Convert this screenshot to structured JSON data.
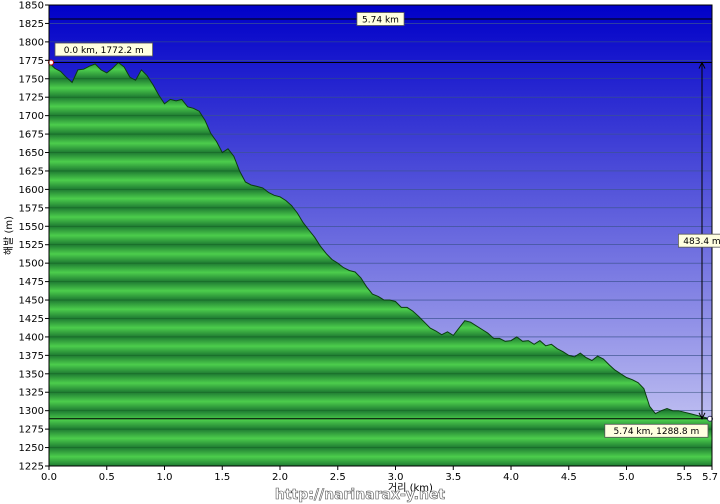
{
  "chart_data": {
    "type": "area",
    "title": "",
    "xlabel": "거리 (km)",
    "ylabel": "해발 (m)",
    "xlim": [
      0,
      5.74
    ],
    "ylim": [
      1225,
      1850
    ],
    "x_ticks": [
      "0.0",
      "0.5",
      "1.0",
      "1.5",
      "2.0",
      "2.5",
      "3.0",
      "3.5",
      "4.0",
      "4.5",
      "5.0",
      "5.5",
      "5.7"
    ],
    "x_tick_values": [
      0,
      0.5,
      1.0,
      1.5,
      2.0,
      2.5,
      3.0,
      3.5,
      4.0,
      4.5,
      5.0,
      5.5,
      5.74
    ],
    "y_ticks": [
      1850,
      1825,
      1800,
      1775,
      1750,
      1725,
      1700,
      1675,
      1650,
      1625,
      1600,
      1575,
      1550,
      1525,
      1500,
      1475,
      1450,
      1425,
      1400,
      1375,
      1350,
      1325,
      1300,
      1275,
      1250,
      1225
    ],
    "grid": true,
    "colors": {
      "sky_top": "#0000c8",
      "sky_bottom": "#c8c8f0",
      "terrain_light": "#46c846",
      "terrain_dark": "#1e7a32"
    },
    "x": [
      0,
      0.05,
      0.1,
      0.15,
      0.2,
      0.25,
      0.3,
      0.35,
      0.4,
      0.45,
      0.5,
      0.55,
      0.6,
      0.65,
      0.7,
      0.75,
      0.8,
      0.85,
      0.9,
      0.95,
      1.0,
      1.05,
      1.1,
      1.15,
      1.2,
      1.25,
      1.3,
      1.35,
      1.4,
      1.45,
      1.5,
      1.55,
      1.6,
      1.65,
      1.7,
      1.75,
      1.8,
      1.85,
      1.9,
      1.95,
      2.0,
      2.05,
      2.1,
      2.15,
      2.2,
      2.25,
      2.3,
      2.35,
      2.4,
      2.45,
      2.5,
      2.55,
      2.6,
      2.65,
      2.7,
      2.75,
      2.8,
      2.85,
      2.9,
      2.95,
      3.0,
      3.05,
      3.1,
      3.15,
      3.2,
      3.25,
      3.3,
      3.35,
      3.4,
      3.45,
      3.5,
      3.55,
      3.6,
      3.65,
      3.7,
      3.75,
      3.8,
      3.85,
      3.9,
      3.95,
      4.0,
      4.05,
      4.1,
      4.15,
      4.2,
      4.25,
      4.3,
      4.35,
      4.4,
      4.45,
      4.5,
      4.55,
      4.6,
      4.65,
      4.7,
      4.75,
      4.8,
      4.85,
      4.9,
      4.95,
      5.0,
      5.05,
      5.1,
      5.15,
      5.2,
      5.25,
      5.3,
      5.35,
      5.4,
      5.45,
      5.5,
      5.55,
      5.6,
      5.65,
      5.7,
      5.74
    ],
    "values": [
      1772,
      1764,
      1760,
      1752,
      1745,
      1762,
      1763,
      1767,
      1770,
      1762,
      1758,
      1764,
      1772,
      1766,
      1752,
      1748,
      1762,
      1754,
      1742,
      1728,
      1716,
      1722,
      1720,
      1722,
      1712,
      1710,
      1706,
      1694,
      1676,
      1665,
      1650,
      1655,
      1645,
      1625,
      1610,
      1606,
      1604,
      1602,
      1596,
      1592,
      1590,
      1585,
      1578,
      1568,
      1555,
      1545,
      1535,
      1523,
      1513,
      1505,
      1500,
      1494,
      1490,
      1488,
      1480,
      1468,
      1458,
      1455,
      1450,
      1450,
      1448,
      1440,
      1440,
      1435,
      1428,
      1420,
      1412,
      1408,
      1403,
      1407,
      1402,
      1412,
      1422,
      1420,
      1415,
      1410,
      1405,
      1398,
      1398,
      1394,
      1395,
      1400,
      1394,
      1395,
      1390,
      1395,
      1388,
      1390,
      1384,
      1380,
      1375,
      1373,
      1378,
      1372,
      1368,
      1374,
      1370,
      1362,
      1355,
      1350,
      1345,
      1342,
      1338,
      1330,
      1306,
      1296,
      1300,
      1303,
      1300,
      1300,
      1298,
      1296,
      1294,
      1292,
      1290,
      1289
    ],
    "callouts": [
      {
        "text": "5.74 km"
      },
      {
        "text": "0.0 km, 1772.2 m"
      },
      {
        "text": "483.4 m"
      },
      {
        "text": "5.74 km, 1288.8 m"
      }
    ],
    "watermark": "http://narinarax-y.net"
  }
}
